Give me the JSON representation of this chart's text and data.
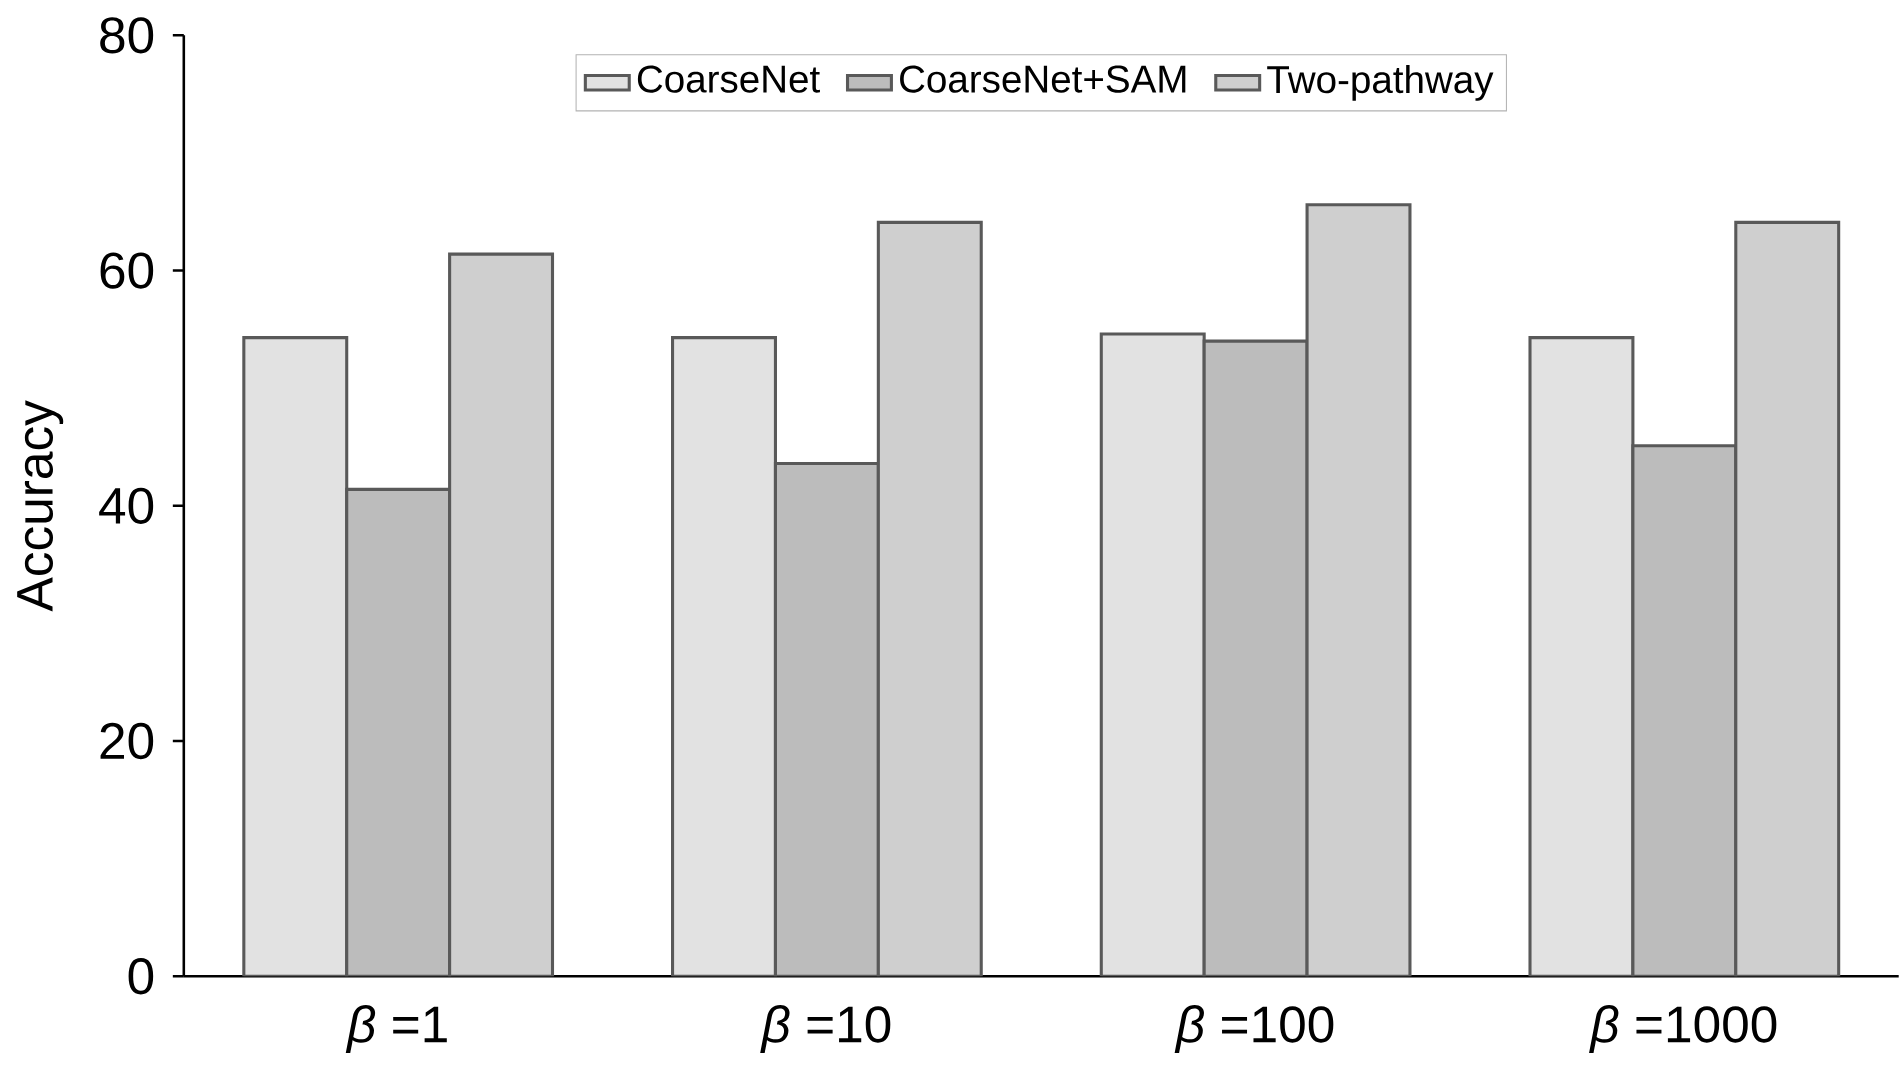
{
  "chart_data": {
    "type": "bar",
    "ylabel": "Accuracy",
    "categories": [
      "*β* =1",
      "*β* =10",
      "*β* =100",
      "*β* =1000"
    ],
    "series": [
      {
        "name": "CoarseNet",
        "color": "#e2e2e2",
        "values": [
          54.3,
          54.3,
          54.6,
          54.3
        ]
      },
      {
        "name": "CoarseNet+SAM",
        "color": "#bcbcbc",
        "values": [
          41.4,
          43.6,
          54.0,
          45.1
        ]
      },
      {
        "name": "Two-pathway",
        "color": "#cfcfcf",
        "values": [
          61.4,
          64.1,
          65.6,
          64.1
        ]
      }
    ],
    "ylim": [
      0,
      80
    ],
    "yticks": [
      0,
      20,
      40,
      60,
      80
    ],
    "legend": "top"
  }
}
